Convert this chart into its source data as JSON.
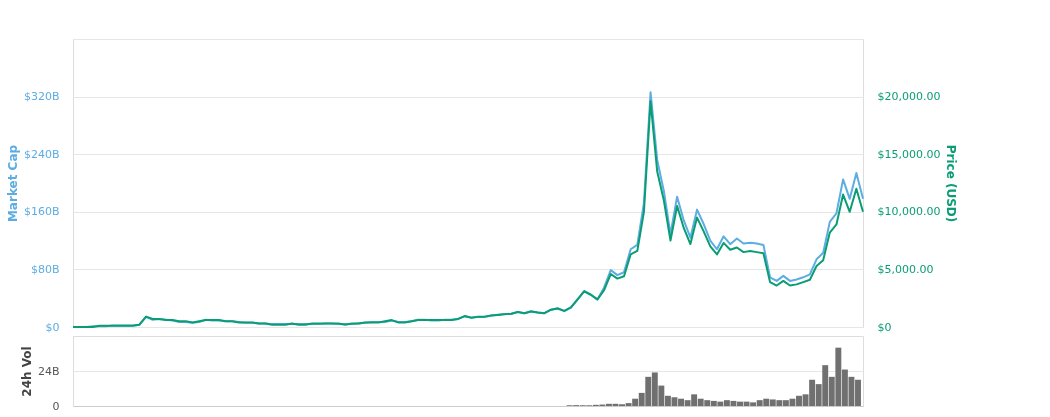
{
  "chart_data": [
    {
      "type": "line",
      "ylabel": "Market Cap",
      "y2label": "Price (USD)",
      "grid": "y",
      "tick_labels": "y",
      "marker": "none",
      "line_style": "solid",
      "categories": [
        null,
        null,
        null,
        null,
        null,
        null,
        null,
        null,
        null,
        null,
        null,
        null,
        null,
        null,
        null,
        null,
        null,
        null,
        null,
        null,
        null,
        null,
        null,
        null,
        null,
        null,
        null,
        null,
        null,
        null,
        null,
        null,
        null,
        null,
        null,
        null,
        null,
        null,
        null,
        null,
        null,
        null,
        null,
        null,
        null,
        null,
        null,
        null,
        null,
        null,
        null,
        null,
        null,
        null,
        null,
        null,
        null,
        null,
        null,
        null,
        null,
        null,
        null,
        null,
        null,
        null,
        null,
        null,
        null,
        null,
        null,
        null,
        null,
        null,
        null,
        null,
        null,
        null,
        null,
        null,
        null,
        null,
        null,
        null,
        null,
        null,
        null,
        null,
        null,
        null,
        null,
        null,
        null,
        null,
        null,
        null,
        null,
        null,
        null,
        null,
        null,
        null,
        null,
        null,
        null,
        null,
        null,
        null,
        null,
        null,
        null,
        null,
        null,
        null,
        null,
        null,
        null,
        null,
        null,
        null
      ],
      "ylim": [
        0,
        400
      ],
      "yticks": [
        {
          "value": 0,
          "label": "$0"
        },
        {
          "value": 80,
          "label": "$80B"
        },
        {
          "value": 160,
          "label": "$160B"
        },
        {
          "value": 240,
          "label": "$240B"
        },
        {
          "value": 320,
          "label": "$320B"
        },
        {
          "value": 400,
          "label": null
        }
      ],
      "y2lim": [
        0,
        25000
      ],
      "y2ticks": [
        {
          "value": 0,
          "label": "$0"
        },
        {
          "value": 5000,
          "label": "$5,000.00"
        },
        {
          "value": 10000,
          "label": "$10,000.00"
        },
        {
          "value": 15000,
          "label": "$15,000.00"
        },
        {
          "value": 20000,
          "label": "$20,000.00"
        },
        {
          "value": 25000,
          "label": null
        }
      ],
      "series": [
        {
          "color": "#5dade2",
          "axis": "y",
          "values": [
            0,
            0,
            0,
            1,
            1,
            1,
            2,
            2,
            2,
            2,
            3,
            14,
            10,
            11,
            10,
            9,
            7,
            7,
            6,
            7,
            10,
            9,
            9,
            8,
            8,
            7,
            6,
            6,
            5,
            5,
            4,
            4,
            4,
            4,
            4,
            4,
            4,
            4,
            5,
            5,
            4,
            4,
            4,
            5,
            6,
            7,
            7,
            7,
            9,
            7,
            7,
            8,
            10,
            10,
            9,
            9,
            10,
            10,
            11,
            15,
            13,
            14,
            14,
            16,
            17,
            18,
            18,
            21,
            19,
            22,
            20,
            19,
            24,
            26,
            22,
            27,
            38,
            50,
            45,
            38,
            55,
            79,
            72,
            76,
            108,
            114,
            172,
            326,
            232,
            189,
            129,
            181,
            148,
            124,
            163,
            143,
            120,
            108,
            126,
            115,
            123,
            116,
            117,
            116,
            114,
            69,
            64,
            71,
            64,
            66,
            69,
            73,
            94,
            103,
            146,
            158,
            205,
            178,
            214,
            178
          ]
        },
        {
          "color": "#0a9d74",
          "axis": "y2",
          "values": [
            0,
            0,
            0,
            0,
            100,
            100,
            100,
            100,
            100,
            100,
            200,
            900,
            700,
            700,
            600,
            600,
            500,
            500,
            400,
            500,
            600,
            600,
            600,
            500,
            500,
            400,
            400,
            400,
            300,
            300,
            200,
            200,
            200,
            300,
            200,
            200,
            300,
            300,
            300,
            300,
            300,
            200,
            300,
            300,
            400,
            400,
            400,
            500,
            600,
            400,
            400,
            500,
            600,
            600,
            600,
            600,
            600,
            600,
            700,
            950,
            800,
            900,
            900,
            1000,
            1050,
            1100,
            1150,
            1300,
            1200,
            1350,
            1250,
            1200,
            1500,
            1600,
            1400,
            1700,
            2400,
            3100,
            2800,
            2400,
            3200,
            4600,
            4200,
            4400,
            6300,
            6600,
            10000,
            19600,
            13500,
            11000,
            7500,
            10500,
            8600,
            7200,
            9500,
            8300,
            7000,
            6300,
            7300,
            6700,
            6900,
            6500,
            6600,
            6500,
            6400,
            3900,
            3600,
            4000,
            3600,
            3700,
            3900,
            4100,
            5300,
            5800,
            8200,
            8900,
            11500,
            10000,
            12000,
            10000
          ]
        }
      ]
    },
    {
      "type": "bar",
      "ylabel": "24h Vol",
      "grid": "y",
      "tick_labels": "y",
      "categories": [
        null,
        null,
        null,
        null,
        null,
        null,
        null,
        null,
        null,
        null,
        null,
        null,
        null,
        null,
        null,
        null,
        null,
        null,
        null,
        null,
        null,
        null,
        null,
        null,
        null,
        null,
        null,
        null,
        null,
        null,
        null,
        null,
        null,
        null,
        null,
        null,
        null,
        null,
        null,
        null,
        null,
        null,
        null,
        null,
        null,
        null,
        null,
        null,
        null,
        null,
        null,
        null,
        null,
        null,
        null,
        null,
        null,
        null,
        null,
        null,
        null,
        null,
        null,
        null,
        null,
        null,
        null,
        null,
        null,
        null,
        null,
        null,
        null,
        null,
        null,
        null,
        null,
        null,
        null,
        null,
        null,
        null,
        null,
        null,
        null,
        null,
        null,
        null,
        null,
        null,
        null,
        null,
        null,
        null,
        null,
        null,
        null,
        null,
        null,
        null,
        null,
        null,
        null,
        null,
        null,
        null,
        null,
        null,
        null,
        null,
        null,
        null,
        null,
        null,
        null,
        null,
        null,
        null,
        null,
        null
      ],
      "ylim": [
        0,
        48
      ],
      "yticks": [
        0,
        {
          "value": 24,
          "label": "24B"
        }
      ],
      "series": [
        {
          "color": "#707070",
          "values": [
            null,
            null,
            null,
            null,
            null,
            null,
            null,
            null,
            null,
            null,
            null,
            null,
            null,
            null,
            null,
            null,
            null,
            null,
            null,
            null,
            null,
            null,
            null,
            null,
            null,
            null,
            null,
            null,
            null,
            null,
            null,
            null,
            null,
            null,
            null,
            null,
            null,
            null,
            null,
            null,
            null,
            null,
            null,
            null,
            null,
            null,
            null,
            null,
            null,
            null,
            null,
            null,
            null,
            null,
            null,
            null,
            null,
            null,
            null,
            null,
            null,
            null,
            null,
            null,
            null,
            null,
            null,
            null,
            null,
            null,
            null,
            null,
            null,
            null,
            null,
            0.5,
            0.6,
            0.6,
            0.5,
            0.8,
            1.0,
            1.5,
            1.5,
            1.2,
            2.0,
            5,
            9,
            20,
            23,
            14,
            7,
            6,
            5,
            4,
            8,
            5,
            4,
            3.5,
            3,
            4,
            3.5,
            3,
            3,
            2.5,
            4,
            5,
            4.5,
            4,
            4,
            5,
            7,
            8,
            18,
            15,
            28,
            20,
            40,
            25,
            20,
            18
          ]
        }
      ]
    }
  ]
}
